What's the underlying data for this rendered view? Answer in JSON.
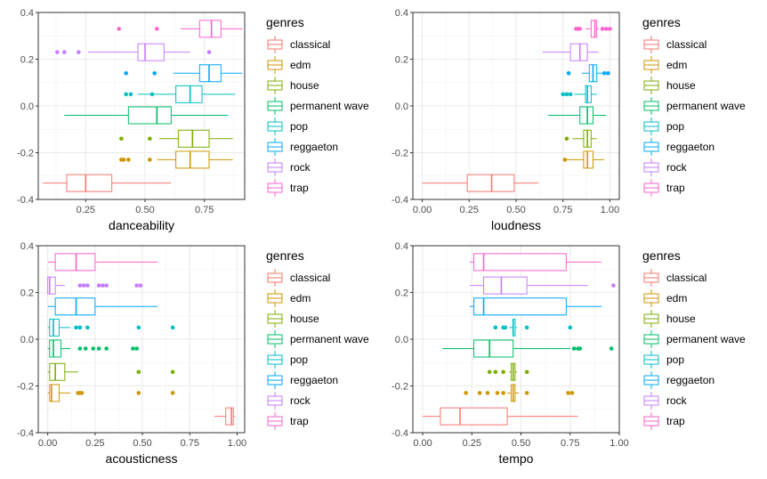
{
  "genres_order": [
    "classical",
    "edm",
    "house",
    "permanent wave",
    "pop",
    "reggaeton",
    "rock",
    "trap"
  ],
  "colors": {
    "classical": "#F8766D",
    "edm": "#CD9600",
    "house": "#7CAE00",
    "permanent wave": "#00BE67",
    "pop": "#00BFC4",
    "reggaeton": "#00A9FF",
    "rock": "#C77CFF",
    "trap": "#FF61CC"
  },
  "chart_data": [
    {
      "type": "boxplot",
      "xlabel": "danceability",
      "xlim": [
        0.05,
        0.92
      ],
      "ylim": [
        -0.4,
        0.4
      ],
      "xticks": [
        "0.25",
        "0.50",
        "0.75"
      ],
      "yticks": [
        "-0.4",
        "-0.2",
        "0.0",
        "0.2",
        "0.4"
      ],
      "legend_title": "genres",
      "legend_position": "right",
      "grid": true,
      "series": [
        {
          "genre": "classical",
          "y": -0.33,
          "min": 0.07,
          "q1": 0.17,
          "median": 0.25,
          "q3": 0.36,
          "max": 0.61,
          "outliers": []
        },
        {
          "genre": "edm",
          "y": -0.23,
          "min": 0.55,
          "q1": 0.63,
          "median": 0.69,
          "q3": 0.77,
          "max": 0.87,
          "outliers": [
            0.4,
            0.41,
            0.43,
            0.52
          ]
        },
        {
          "genre": "house",
          "y": -0.14,
          "min": 0.56,
          "q1": 0.64,
          "median": 0.7,
          "q3": 0.77,
          "max": 0.87,
          "outliers": [
            0.4,
            0.52
          ]
        },
        {
          "genre": "permanent wave",
          "y": -0.04,
          "min": 0.16,
          "q1": 0.43,
          "median": 0.55,
          "q3": 0.61,
          "max": 0.85,
          "outliers": []
        },
        {
          "genre": "pop",
          "y": 0.05,
          "min": 0.47,
          "q1": 0.63,
          "median": 0.69,
          "q3": 0.74,
          "max": 0.88,
          "outliers": [
            0.42,
            0.44,
            0.53
          ]
        },
        {
          "genre": "reggaeton",
          "y": 0.14,
          "min": 0.62,
          "q1": 0.73,
          "median": 0.77,
          "q3": 0.82,
          "max": 0.91,
          "outliers": [
            0.42,
            0.54
          ]
        },
        {
          "genre": "rock",
          "y": 0.23,
          "min": 0.26,
          "q1": 0.47,
          "median": 0.5,
          "q3": 0.58,
          "max": 0.69,
          "outliers": [
            0.13,
            0.16,
            0.22,
            0.77
          ]
        },
        {
          "genre": "trap",
          "y": 0.33,
          "min": 0.65,
          "q1": 0.73,
          "median": 0.78,
          "q3": 0.82,
          "max": 0.91,
          "outliers": [
            0.39,
            0.55
          ]
        }
      ]
    },
    {
      "type": "boxplot",
      "xlabel": "loudness",
      "xlim": [
        -0.05,
        1.05
      ],
      "ylim": [
        -0.4,
        0.4
      ],
      "xticks": [
        "0.00",
        "0.25",
        "0.50",
        "0.75",
        "1.00"
      ],
      "yticks": [
        "-0.4",
        "-0.2",
        "0.0",
        "0.2",
        "0.4"
      ],
      "legend_title": "genres",
      "legend_position": "right",
      "grid": true,
      "series": [
        {
          "genre": "classical",
          "y": -0.33,
          "min": 0.0,
          "q1": 0.24,
          "median": 0.37,
          "q3": 0.49,
          "max": 0.62,
          "outliers": []
        },
        {
          "genre": "edm",
          "y": -0.23,
          "min": 0.77,
          "q1": 0.86,
          "median": 0.88,
          "q3": 0.91,
          "max": 0.97,
          "outliers": [
            0.76
          ]
        },
        {
          "genre": "house",
          "y": -0.14,
          "min": 0.8,
          "q1": 0.86,
          "median": 0.88,
          "q3": 0.9,
          "max": 0.93,
          "outliers": [
            0.77
          ]
        },
        {
          "genre": "permanent wave",
          "y": -0.04,
          "min": 0.67,
          "q1": 0.84,
          "median": 0.88,
          "q3": 0.91,
          "max": 0.98,
          "outliers": []
        },
        {
          "genre": "pop",
          "y": 0.05,
          "min": 0.81,
          "q1": 0.87,
          "median": 0.88,
          "q3": 0.9,
          "max": 0.93,
          "outliers": [
            0.75,
            0.77,
            0.79
          ]
        },
        {
          "genre": "reggaeton",
          "y": 0.14,
          "min": 0.85,
          "q1": 0.89,
          "median": 0.91,
          "q3": 0.93,
          "max": 0.96,
          "outliers": [
            0.78,
            0.97,
            0.99
          ]
        },
        {
          "genre": "rock",
          "y": 0.23,
          "min": 0.64,
          "q1": 0.79,
          "median": 0.84,
          "q3": 0.88,
          "max": 0.94,
          "outliers": []
        },
        {
          "genre": "trap",
          "y": 0.33,
          "min": 0.87,
          "q1": 0.9,
          "median": 0.92,
          "q3": 0.93,
          "max": 0.94,
          "outliers": [
            0.82,
            0.83,
            0.84,
            0.96,
            0.98,
            1.0
          ]
        }
      ]
    },
    {
      "type": "boxplot",
      "xlabel": "acousticness",
      "xlim": [
        -0.05,
        1.04
      ],
      "ylim": [
        -0.4,
        0.4
      ],
      "xticks": [
        "0.00",
        "0.25",
        "0.50",
        "0.75",
        "1.00"
      ],
      "yticks": [
        "-0.4",
        "-0.2",
        "0.0",
        "0.2",
        "0.4"
      ],
      "legend_title": "genres",
      "legend_position": "right",
      "grid": true,
      "series": [
        {
          "genre": "classical",
          "y": -0.33,
          "min": 0.88,
          "q1": 0.94,
          "median": 0.97,
          "q3": 0.98,
          "max": 0.99,
          "outliers": []
        },
        {
          "genre": "edm",
          "y": -0.23,
          "min": 0.0,
          "q1": 0.01,
          "median": 0.02,
          "q3": 0.06,
          "max": 0.12,
          "outliers": [
            0.16,
            0.17,
            0.18,
            0.48,
            0.66
          ]
        },
        {
          "genre": "house",
          "y": -0.14,
          "min": 0.0,
          "q1": 0.01,
          "median": 0.04,
          "q3": 0.09,
          "max": 0.16,
          "outliers": [
            0.48,
            0.66
          ]
        },
        {
          "genre": "permanent wave",
          "y": -0.04,
          "min": 0.0,
          "q1": 0.01,
          "median": 0.03,
          "q3": 0.07,
          "max": 0.12,
          "outliers": [
            0.17,
            0.2,
            0.24,
            0.27,
            0.31,
            0.45,
            0.47
          ]
        },
        {
          "genre": "pop",
          "y": 0.05,
          "min": 0.0,
          "q1": 0.01,
          "median": 0.03,
          "q3": 0.06,
          "max": 0.12,
          "outliers": [
            0.15,
            0.17,
            0.21,
            0.48,
            0.66
          ]
        },
        {
          "genre": "reggaeton",
          "y": 0.14,
          "min": 0.0,
          "q1": 0.04,
          "median": 0.15,
          "q3": 0.25,
          "max": 0.58,
          "outliers": []
        },
        {
          "genre": "rock",
          "y": 0.23,
          "min": 0.0,
          "q1": 0.0,
          "median": 0.01,
          "q3": 0.04,
          "max": 0.09,
          "outliers": [
            0.17,
            0.19,
            0.21,
            0.27,
            0.29,
            0.31,
            0.47,
            0.49
          ]
        },
        {
          "genre": "trap",
          "y": 0.33,
          "min": 0.0,
          "q1": 0.04,
          "median": 0.15,
          "q3": 0.25,
          "max": 0.58,
          "outliers": []
        }
      ]
    },
    {
      "type": "boxplot",
      "xlabel": "tempo",
      "xlim": [
        -0.05,
        1.0
      ],
      "ylim": [
        -0.4,
        0.4
      ],
      "xticks": [
        "0.00",
        "0.25",
        "0.50",
        "0.75",
        "1.00"
      ],
      "yticks": [
        "-0.4",
        "-0.2",
        "0.0",
        "0.2",
        "0.4"
      ],
      "legend_title": "genres",
      "legend_position": "right",
      "grid": true,
      "series": [
        {
          "genre": "classical",
          "y": -0.33,
          "min": 0.0,
          "q1": 0.09,
          "median": 0.19,
          "q3": 0.43,
          "max": 0.79,
          "outliers": []
        },
        {
          "genre": "edm",
          "y": -0.23,
          "min": 0.43,
          "q1": 0.45,
          "median": 0.46,
          "q3": 0.47,
          "max": 0.49,
          "outliers": [
            0.22,
            0.29,
            0.33,
            0.38,
            0.41,
            0.53,
            0.74,
            0.76
          ]
        },
        {
          "genre": "house",
          "y": -0.14,
          "min": 0.44,
          "q1": 0.45,
          "median": 0.46,
          "q3": 0.47,
          "max": 0.48,
          "outliers": [
            0.34,
            0.37,
            0.41,
            0.53
          ]
        },
        {
          "genre": "permanent wave",
          "y": -0.04,
          "min": 0.1,
          "q1": 0.26,
          "median": 0.34,
          "q3": 0.46,
          "max": 0.75,
          "outliers": [
            0.77,
            0.79,
            0.8,
            0.96
          ]
        },
        {
          "genre": "pop",
          "y": 0.05,
          "min": 0.44,
          "q1": 0.46,
          "median": 0.46,
          "q3": 0.47,
          "max": 0.48,
          "outliers": [
            0.37,
            0.41,
            0.42,
            0.53,
            0.75
          ]
        },
        {
          "genre": "reggaeton",
          "y": 0.14,
          "min": 0.24,
          "q1": 0.26,
          "median": 0.31,
          "q3": 0.73,
          "max": 0.91,
          "outliers": []
        },
        {
          "genre": "rock",
          "y": 0.23,
          "min": 0.24,
          "q1": 0.31,
          "median": 0.4,
          "q3": 0.53,
          "max": 0.84,
          "outliers": [
            0.97
          ]
        },
        {
          "genre": "trap",
          "y": 0.33,
          "min": 0.24,
          "q1": 0.26,
          "median": 0.31,
          "q3": 0.73,
          "max": 0.91,
          "outliers": []
        }
      ]
    }
  ]
}
